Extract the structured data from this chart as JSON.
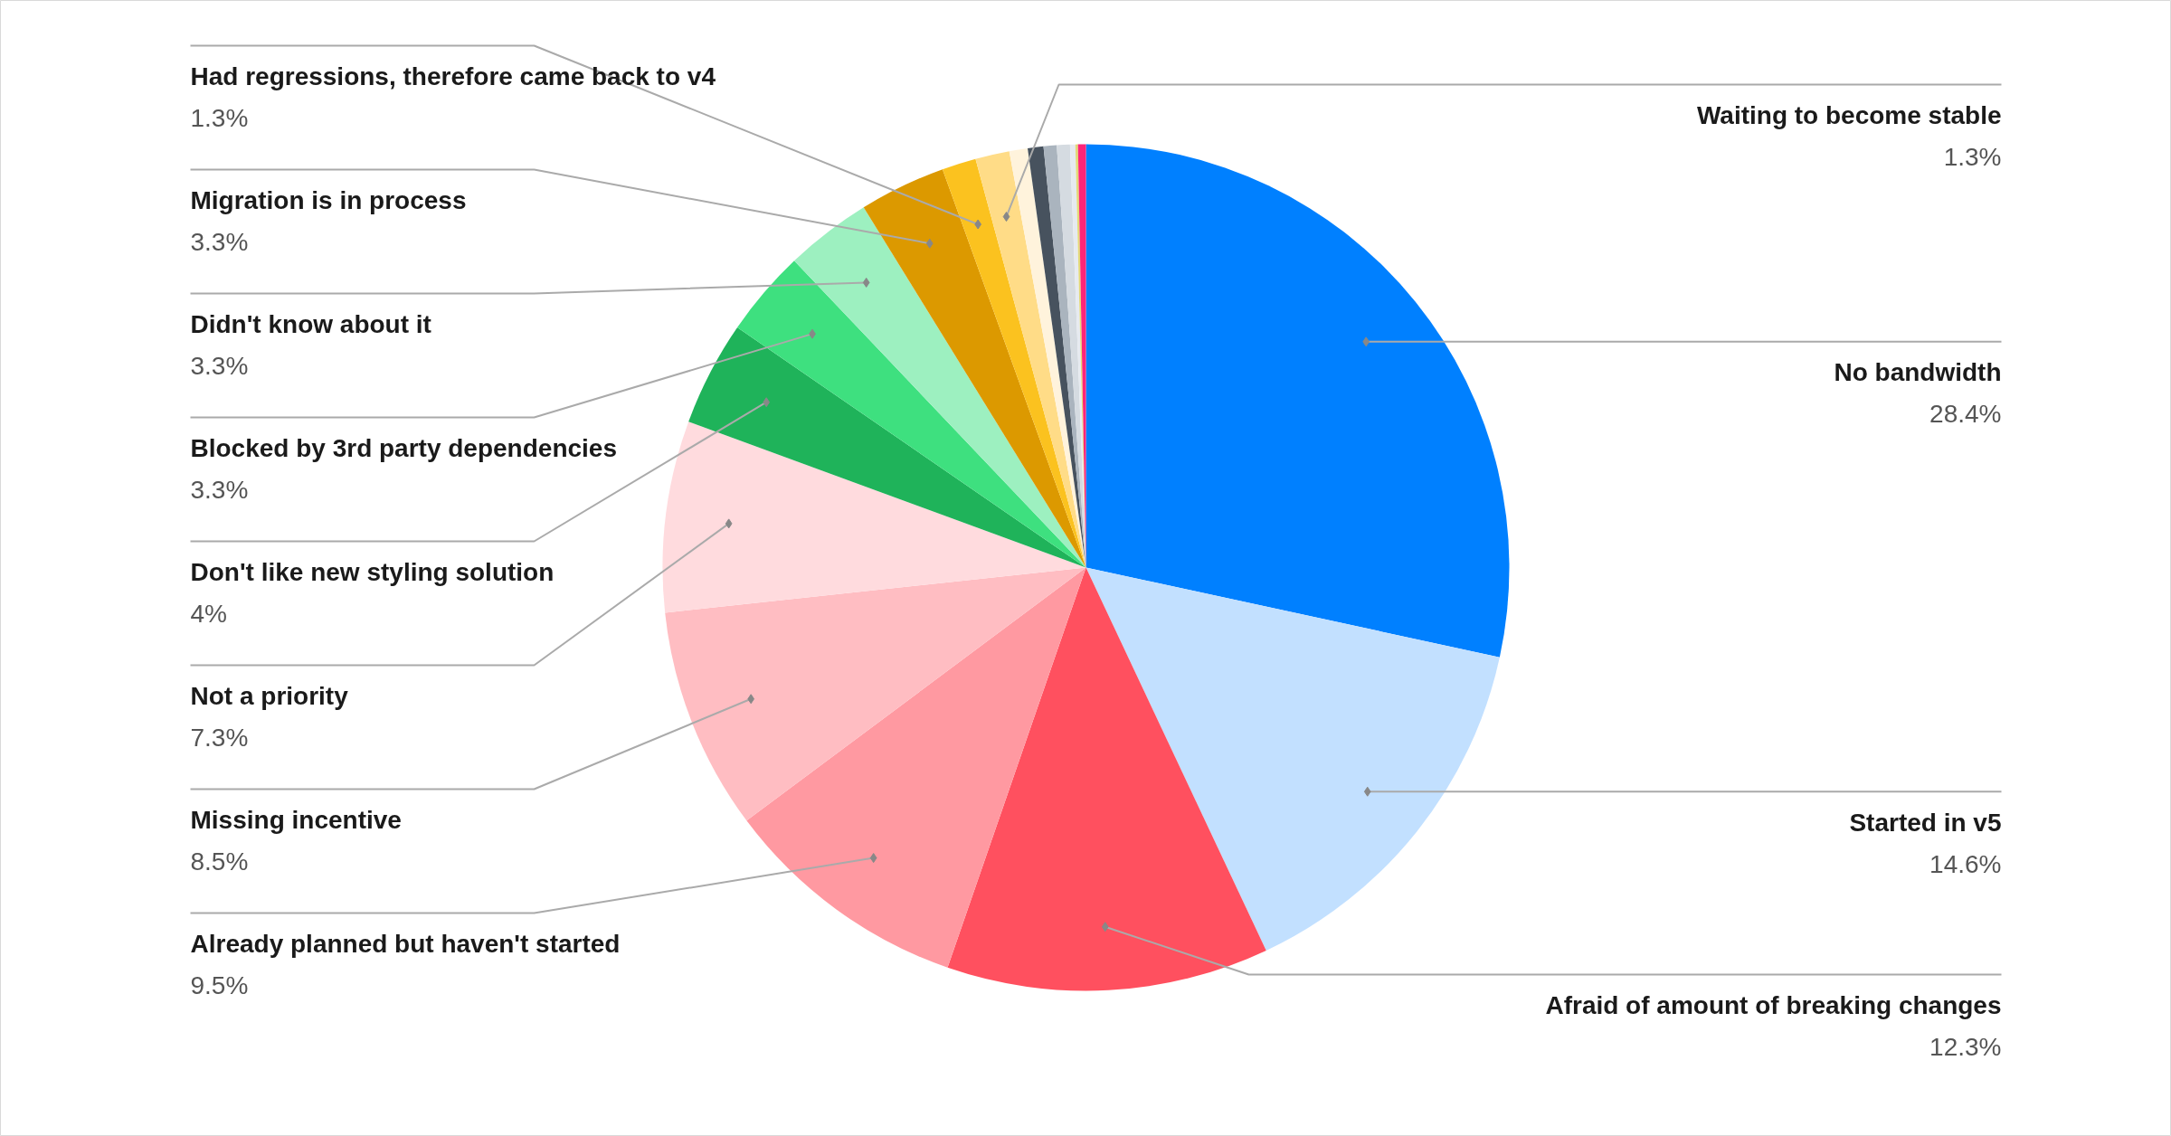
{
  "chart_data": {
    "type": "pie",
    "categories": [
      "No bandwidth",
      "Started in v5",
      "Afraid of amount of breaking changes",
      "Already planned but haven't started",
      "Missing incentive",
      "Not a priority",
      "Don't like new styling solution",
      "Blocked by 3rd party dependencies",
      "Didn't know about it",
      "Migration is in process",
      "Had regressions, therefore came back to v4",
      "Waiting to become stable",
      null,
      null,
      null,
      null,
      null,
      null,
      null
    ],
    "values": [
      28.4,
      14.6,
      12.3,
      9.5,
      8.5,
      7.3,
      4,
      3.3,
      3.3,
      3.3,
      1.3,
      1.3,
      0.7,
      0.6,
      0.5,
      0.5,
      0.2,
      0.1,
      0.3
    ],
    "value_labels": [
      "28.4%",
      "14.6%",
      "12.3%",
      "9.5%",
      "8.5%",
      "7.3%",
      "4%",
      "3.3%",
      "3.3%",
      "3.3%",
      "1.3%",
      "1.3%",
      null,
      null,
      null,
      null,
      null,
      null,
      null
    ],
    "colors": [
      "#0080ff",
      "#c2e0ff",
      "#ff505f",
      "#ff99a1",
      "#ffbdc2",
      "#ffdbde",
      "#1fb35a",
      "#3ee07f",
      "#9df0c0",
      "#dc9900",
      "#fbc21f",
      "#ffdc87",
      "#fff3dc",
      "#47525e",
      "#aab4be",
      "#d5dbe1",
      "#e6eaf0",
      "#e3d878",
      "#ff2578"
    ]
  }
}
